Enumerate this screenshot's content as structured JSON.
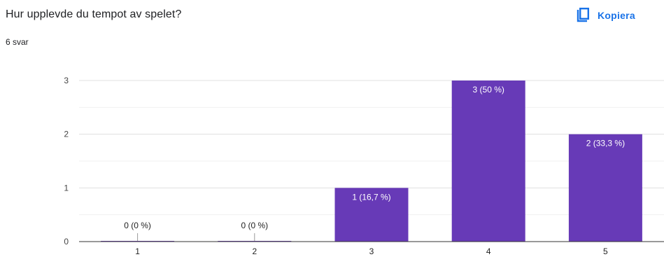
{
  "question": {
    "title": "Hur upplevde du tempot av spelet?",
    "response_count": "6 svar"
  },
  "actions": {
    "copy_label": "Kopiera",
    "copy_icon": "copy-icon"
  },
  "colors": {
    "bar": "#673ab7",
    "accent": "#1a73e8",
    "grid": "#e0e0e0",
    "axis": "#333333"
  },
  "chart_data": {
    "type": "bar",
    "title": "",
    "xlabel": "",
    "ylabel": "",
    "categories": [
      "1",
      "2",
      "3",
      "4",
      "5"
    ],
    "values": [
      0,
      0,
      1,
      3,
      2
    ],
    "labels": [
      "0 (0 %)",
      "0 (0 %)",
      "1 (16,7 %)",
      "3 (50 %)",
      "2 (33,3 %)"
    ],
    "ylim": [
      0,
      3
    ],
    "yticks": [
      "0",
      "1",
      "2",
      "3"
    ],
    "grid": true,
    "legend": "none"
  }
}
